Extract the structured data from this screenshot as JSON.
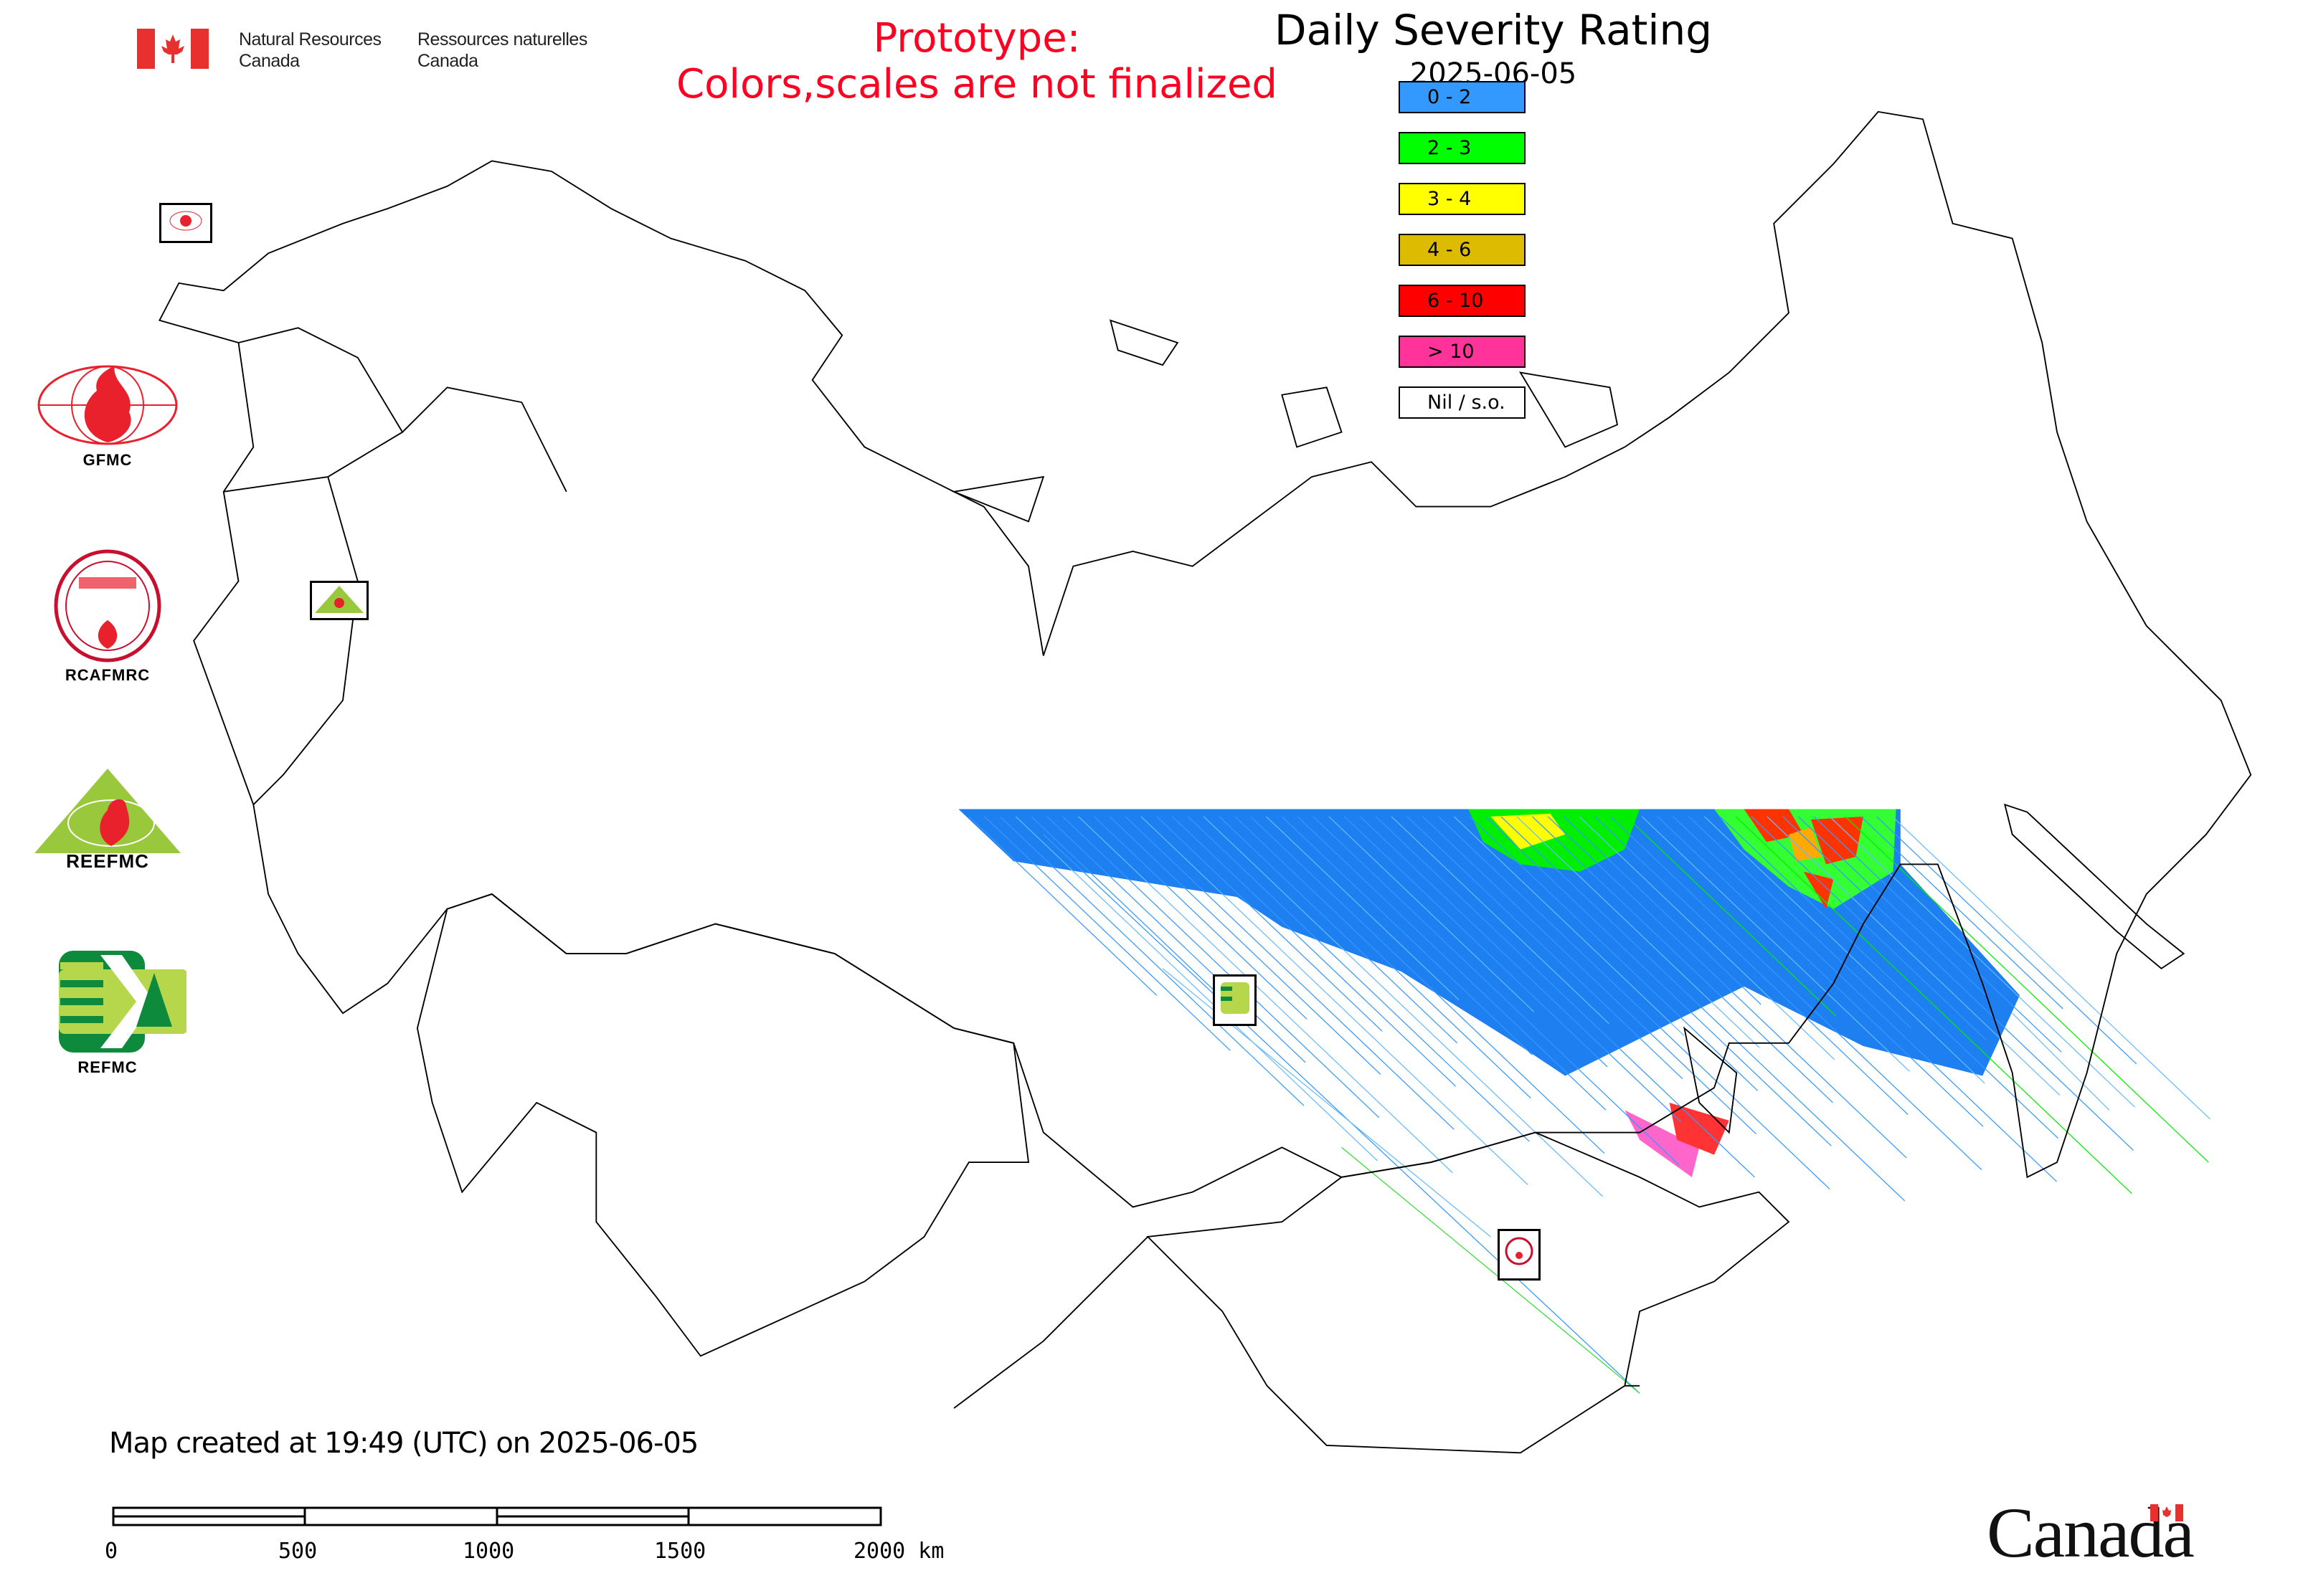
{
  "header": {
    "org_en_line1": "Natural Resources",
    "org_en_line2": "Canada",
    "org_fr_line1": "Ressources naturelles",
    "org_fr_line2": "Canada",
    "flag_icon": "canada-flag-icon"
  },
  "prototype_notice": {
    "line1": "Prototype:",
    "line2": "Colors,scales are not finalized",
    "color": "#ff0022"
  },
  "title": "Daily Severity Rating",
  "date": "2025-06-05",
  "legend": [
    {
      "label": "0 - 2",
      "color": "#3399ff"
    },
    {
      "label": "2 - 3",
      "color": "#00ff00"
    },
    {
      "label": "3 - 4",
      "color": "#ffff00"
    },
    {
      "label": "4 - 6",
      "color": "#ddbb00"
    },
    {
      "label": "6 - 10",
      "color": "#ff0000"
    },
    {
      "label": "> 10",
      "color": "#ff3399"
    },
    {
      "label": "Nil / s.o.",
      "color": "#ffffff"
    }
  ],
  "partner_logos": [
    {
      "label": "GFMC"
    },
    {
      "label": "RCAFMRC"
    },
    {
      "label": "REEFMC"
    },
    {
      "label": "REFMC"
    }
  ],
  "credit": "Map created at 19:49 (UTC) on 2025-06-05",
  "scale_bar": {
    "labels": [
      "0",
      "500",
      "1000",
      "1500",
      "2000 km"
    ]
  },
  "wordmark": "Canada"
}
